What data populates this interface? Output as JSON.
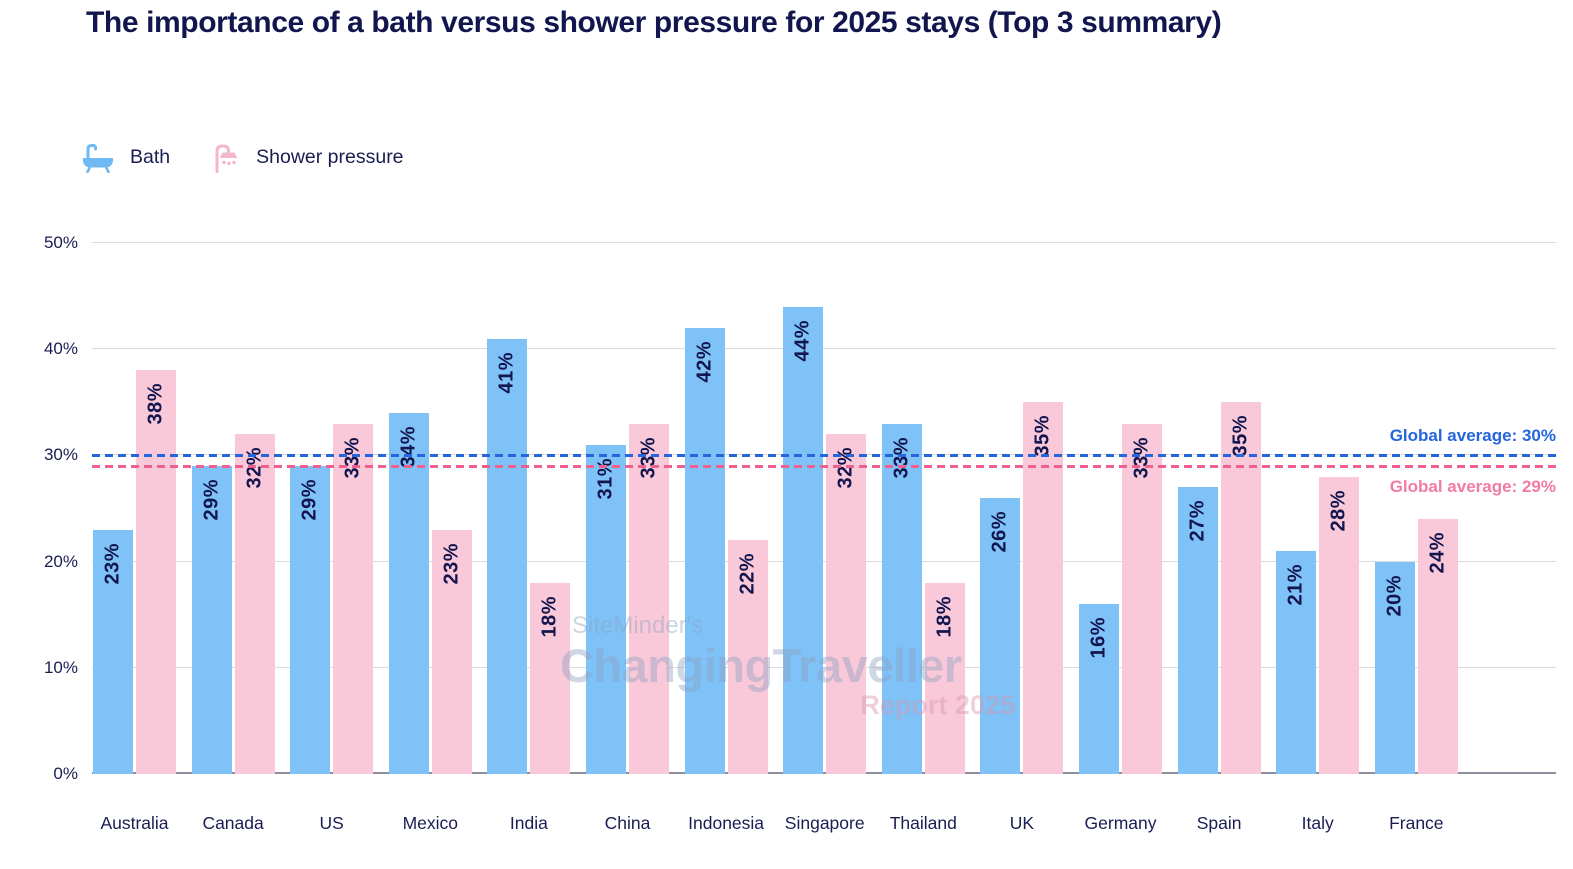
{
  "title": "The importance of a bath versus shower pressure for 2025 stays (Top 3 summary)",
  "legend": {
    "items": [
      {
        "icon": "bath-icon",
        "label": "Bath",
        "color": "#6fb9f4"
      },
      {
        "icon": "shower-icon",
        "label": "Shower pressure",
        "color": "#f6b6cd"
      }
    ]
  },
  "watermark": {
    "line1": "SiteMinder's",
    "line2": "ChangingTraveller",
    "line3": "Report 2025"
  },
  "chart_data": {
    "type": "bar",
    "title": "The importance of a bath versus shower pressure for 2025 stays (Top 3 summary)",
    "categories": [
      "Australia",
      "Canada",
      "US",
      "Mexico",
      "India",
      "China",
      "Indonesia",
      "Singapore",
      "Thailand",
      "UK",
      "Germany",
      "Spain",
      "Italy",
      "France"
    ],
    "series": [
      {
        "name": "Bath",
        "color": "#7ec2f7",
        "values": [
          23,
          29,
          29,
          34,
          41,
          31,
          42,
          44,
          33,
          26,
          16,
          27,
          21,
          20
        ]
      },
      {
        "name": "Shower pressure",
        "color": "#f9c9da",
        "values": [
          38,
          32,
          33,
          23,
          18,
          33,
          22,
          32,
          18,
          35,
          33,
          35,
          28,
          24
        ]
      }
    ],
    "value_suffix": "%",
    "yticks": [
      "0%",
      "10%",
      "20%",
      "30%",
      "40%",
      "50%"
    ],
    "ylim": [
      0,
      50
    ],
    "grid": true,
    "legend_position": "top-left",
    "value_labels": "rotated-vertical-inside-bar-top",
    "reference_lines": [
      {
        "label": "Global average: 30%",
        "value": 30,
        "color": "#2566df",
        "label_color": "#2566df",
        "label_side": "above"
      },
      {
        "label": "Global average: 29%",
        "value": 29,
        "color": "#f0608f",
        "label_color": "#f27ba2",
        "label_side": "below"
      }
    ],
    "text_color": "#13164e",
    "gridline_color": "#dcdce0"
  }
}
